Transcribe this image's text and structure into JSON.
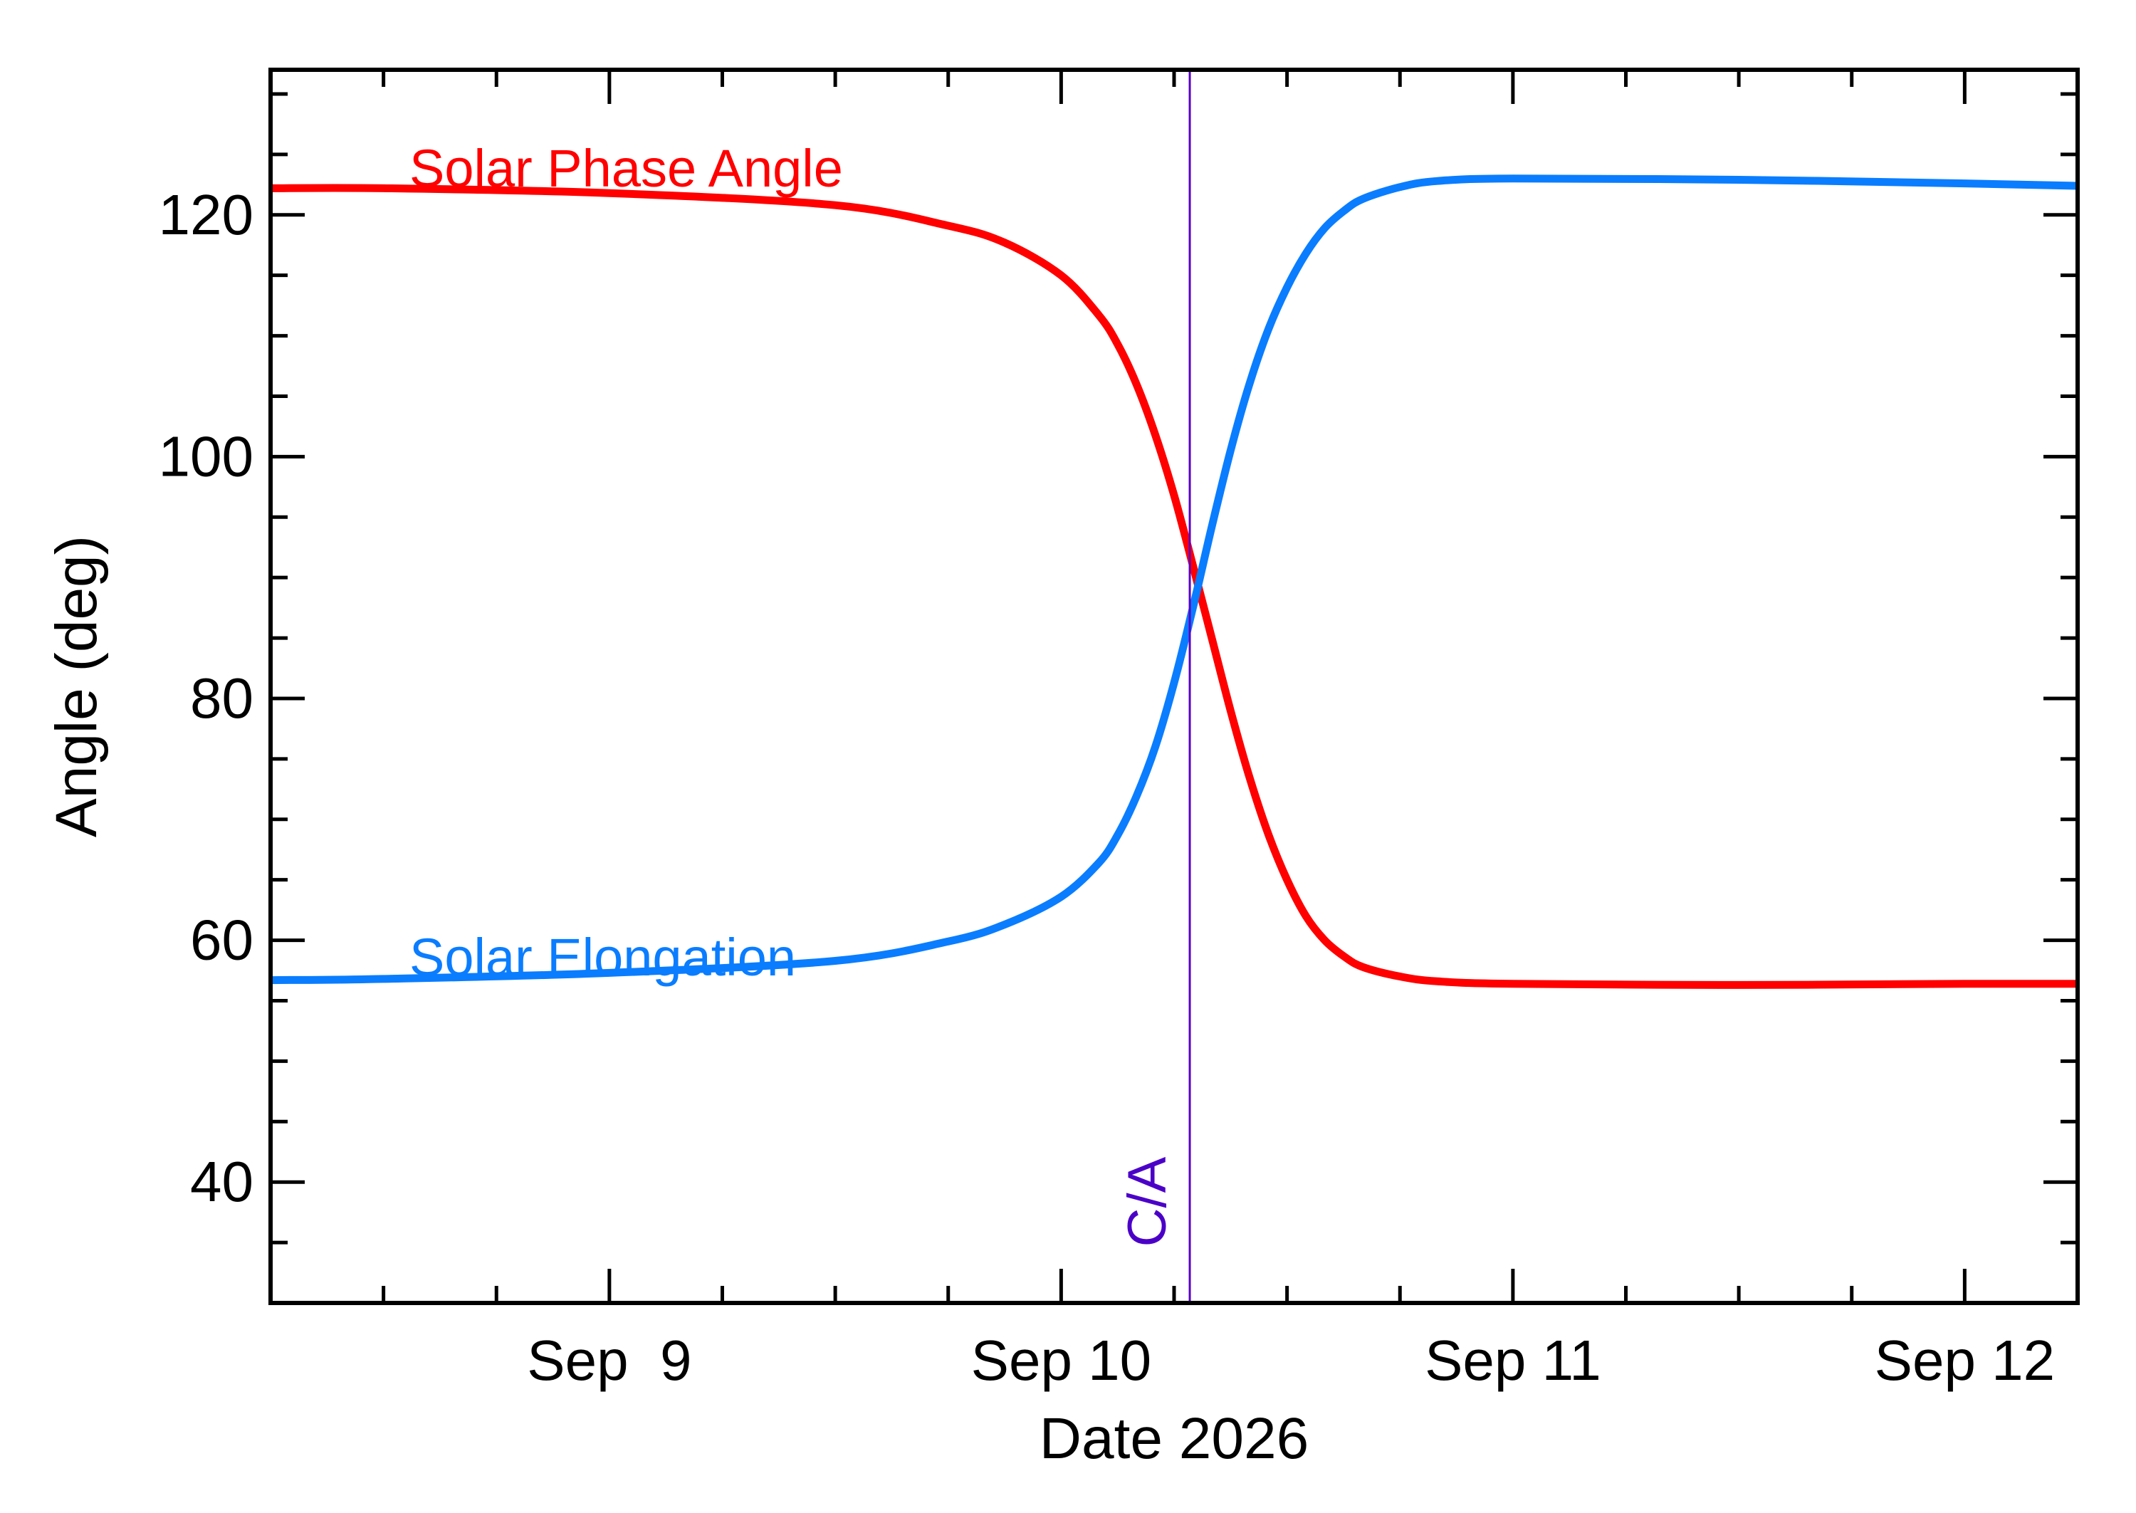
{
  "chart_data": {
    "type": "line",
    "xlabel": "Date 2026",
    "ylabel": "Angle (deg)",
    "xlim": [
      "2026-09-08 06:00",
      "2026-09-12 06:00"
    ],
    "ylim": [
      30,
      132
    ],
    "grid": false,
    "yticks": [
      40,
      60,
      80,
      100,
      120
    ],
    "xticks": [
      {
        "value": "2026-09-09 00:00",
        "label": "Sep  9"
      },
      {
        "value": "2026-09-10 00:00",
        "label": "Sep 10"
      },
      {
        "value": "2026-09-11 00:00",
        "label": "Sep 11"
      },
      {
        "value": "2026-09-12 00:00",
        "label": "Sep 12"
      }
    ],
    "series": [
      {
        "name": "Solar Phase Angle",
        "color": "#ff0000",
        "x": [
          "2026-09-08 06:00",
          "2026-09-08 12:00",
          "2026-09-09 00:00",
          "2026-09-09 12:00",
          "2026-09-09 18:00",
          "2026-09-09 21:00",
          "2026-09-10 00:00",
          "2026-09-10 02:00",
          "2026-09-10 03:00",
          "2026-09-10 04:00",
          "2026-09-10 05:00",
          "2026-09-10 06:00",
          "2026-09-10 07:00",
          "2026-09-10 08:00",
          "2026-09-10 09:00",
          "2026-09-10 10:00",
          "2026-09-10 11:00",
          "2026-09-10 12:00",
          "2026-09-10 13:00",
          "2026-09-10 14:00",
          "2026-09-10 15:00",
          "2026-09-10 16:00",
          "2026-09-10 18:00",
          "2026-09-10 20:00",
          "2026-09-11 00:00",
          "2026-09-11 12:00",
          "2026-09-12 00:00",
          "2026-09-12 06:00"
        ],
        "y": [
          122.2,
          122.2,
          121.8,
          120.8,
          119.1,
          117.7,
          115.0,
          111.7,
          109.3,
          106.0,
          101.8,
          96.8,
          91.0,
          85.0,
          79.0,
          73.5,
          68.8,
          65.0,
          62.0,
          60.0,
          58.7,
          57.8,
          57.0,
          56.6,
          56.4,
          56.3,
          56.4,
          56.4
        ]
      },
      {
        "name": "Solar Elongation",
        "color": "#0a7dff",
        "x": [
          "2026-09-08 06:00",
          "2026-09-08 12:00",
          "2026-09-09 00:00",
          "2026-09-09 12:00",
          "2026-09-09 18:00",
          "2026-09-09 21:00",
          "2026-09-10 00:00",
          "2026-09-10 02:00",
          "2026-09-10 03:00",
          "2026-09-10 04:00",
          "2026-09-10 05:00",
          "2026-09-10 06:00",
          "2026-09-10 07:00",
          "2026-09-10 08:00",
          "2026-09-10 09:00",
          "2026-09-10 10:00",
          "2026-09-10 11:00",
          "2026-09-10 12:00",
          "2026-09-10 13:00",
          "2026-09-10 14:00",
          "2026-09-10 15:00",
          "2026-09-10 16:00",
          "2026-09-10 18:00",
          "2026-09-10 20:00",
          "2026-09-11 00:00",
          "2026-09-11 12:00",
          "2026-09-12 00:00",
          "2026-09-12 06:00"
        ],
        "y": [
          56.7,
          56.8,
          57.3,
          58.3,
          59.9,
          61.3,
          63.6,
          66.4,
          68.7,
          71.9,
          76.0,
          81.3,
          87.5,
          94.2,
          100.5,
          106.0,
          110.5,
          114.0,
          116.8,
          118.9,
          120.3,
          121.3,
          122.3,
          122.8,
          123.0,
          122.9,
          122.6,
          122.4
        ]
      }
    ],
    "annotations": [
      {
        "text": "C/A",
        "x": "2026-09-10 06:50",
        "color": "#4b00c8"
      },
      {
        "text": "Solar Phase Angle",
        "color": "#ff0000"
      },
      {
        "text": "Solar Elongation",
        "color": "#0a7dff"
      }
    ]
  }
}
